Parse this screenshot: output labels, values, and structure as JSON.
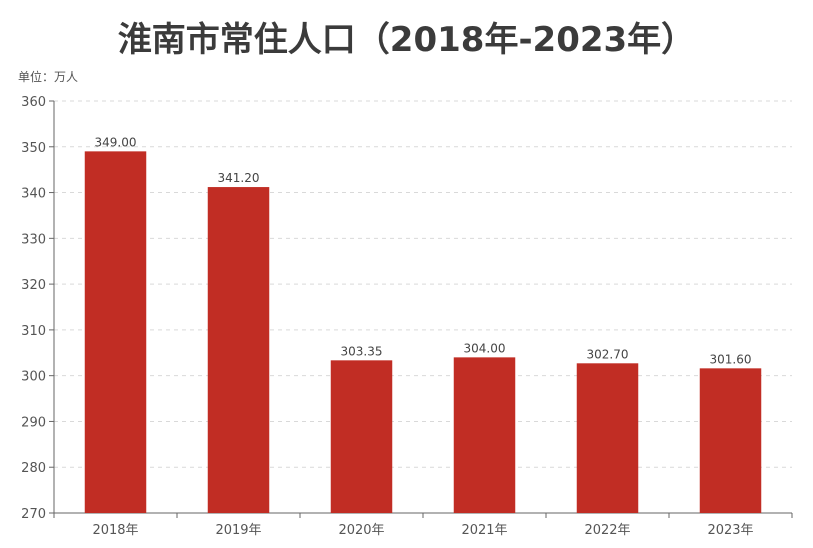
{
  "title": "淮南市常住人口（2018年-2023年）",
  "unit_label": "单位：万人",
  "colors": {
    "bar": "#c12d24",
    "axis": "#666666",
    "grid": "#d9d9d9",
    "text": "#555555",
    "label": "#444444"
  },
  "chart_data": {
    "type": "bar",
    "categories": [
      "2018年",
      "2019年",
      "2020年",
      "2021年",
      "2022年",
      "2023年"
    ],
    "values": [
      349.0,
      341.2,
      303.35,
      304.0,
      302.7,
      301.6
    ],
    "value_labels": [
      "349.00",
      "341.20",
      "303.35",
      "304.00",
      "302.70",
      "301.60"
    ],
    "title": "淮南市常住人口（2018年-2023年）",
    "ylabel": "单位：万人",
    "ylim": [
      270,
      360
    ],
    "yticks": [
      270,
      280,
      290,
      300,
      310,
      320,
      330,
      340,
      350,
      360
    ],
    "grid": true,
    "grid_style": "dashed"
  }
}
